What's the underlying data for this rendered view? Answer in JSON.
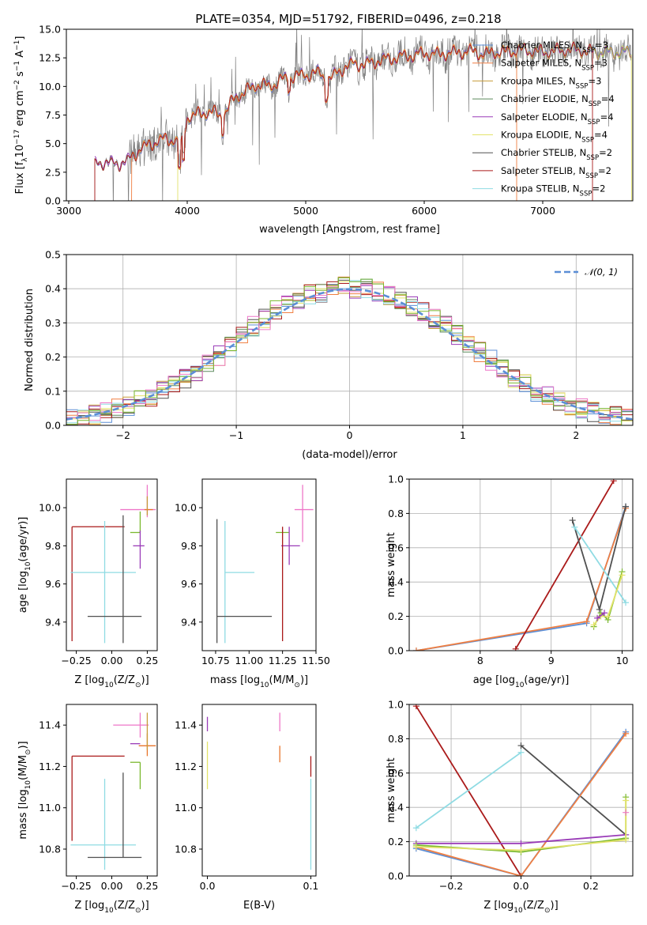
{
  "figure_title": "PLATE=0354, MJD=51792, FIBERID=0496, z=0.218",
  "colors": {
    "chabrier_miles": "#5b8ed6",
    "salpeter_miles": "#f07f42",
    "kroupa_miles": "#c79b3a",
    "chabrier_elodie": "#5c8a5c",
    "salpeter_elodie": "#9a3cb8",
    "kroupa_elodie": "#e3e36b",
    "chabrier_stelib": "#505050",
    "salpeter_stelib": "#aa1a1a",
    "kroupa_stelib": "#8fdbe3",
    "data": "#808080",
    "pink": "#ee77c8",
    "green": "#7ab82e",
    "orange": "#e8742a"
  },
  "chart_data": [
    {
      "id": "spectrum",
      "type": "line",
      "title": "PLATE=0354, MJD=51792, FIBERID=0496, z=0.218",
      "xlabel": "wavelength [Angstrom, rest frame]",
      "ylabel": "Flux [f",
      "ylabel_sub": "λ",
      "ylabel_rest": "10",
      "ylabel_exp": "−17",
      "ylabel_units": " erg cm",
      "ylabel_units_exp": "−2",
      "ylabel_units2": " s",
      "ylabel_units2_exp": "−1",
      "ylabel_units3": " A",
      "ylabel_units3_exp": "−1",
      "ylabel_end": "]",
      "xlim": [
        2980,
        7760
      ],
      "ylim": [
        0,
        15
      ],
      "xticks": [
        3000,
        4000,
        5000,
        6000,
        7000
      ],
      "yticks": [
        0.0,
        2.5,
        5.0,
        7.5,
        10.0,
        12.5,
        15.0
      ],
      "xtick_labels": [
        "3000",
        "4000",
        "5000",
        "6000",
        "7000"
      ],
      "ytick_labels": [
        "0.0",
        "2.5",
        "5.0",
        "7.5",
        "10.0",
        "12.5",
        "15.0"
      ],
      "legend_position": "right",
      "legend": [
        {
          "name": "Chabrier MILES, N",
          "sub": "SSP",
          "tail": "=3",
          "color": "#5b8ed6"
        },
        {
          "name": "Salpeter MILES, N",
          "sub": "SSP",
          "tail": "=3",
          "color": "#f07f42"
        },
        {
          "name": "Kroupa MILES, N",
          "sub": "SSP",
          "tail": "=3",
          "color": "#c79b3a"
        },
        {
          "name": "Chabrier ELODIE, N",
          "sub": "SSP",
          "tail": "=4",
          "color": "#5c8a5c"
        },
        {
          "name": "Salpeter ELODIE, N",
          "sub": "SSP",
          "tail": "=4",
          "color": "#9a3cb8"
        },
        {
          "name": "Kroupa ELODIE, N",
          "sub": "SSP",
          "tail": "=4",
          "color": "#e3e36b"
        },
        {
          "name": "Chabrier STELIB, N",
          "sub": "SSP",
          "tail": "=2",
          "color": "#505050"
        },
        {
          "name": "Salpeter STELIB, N",
          "sub": "SSP",
          "tail": "=2",
          "color": "#aa1a1a"
        },
        {
          "name": "Kroupa STELIB, N",
          "sub": "SSP",
          "tail": "=2",
          "color": "#8fdbe3"
        }
      ],
      "model_envelope": {
        "x": [
          3220,
          3300,
          3400,
          3500,
          3600,
          3700,
          3800,
          3900,
          3950,
          4000,
          4100,
          4200,
          4300,
          4400,
          4500,
          4600,
          4700,
          4800,
          4900,
          5000,
          5100,
          5200,
          5300,
          5400,
          5500,
          5600,
          5700,
          5800,
          5900,
          6000,
          6100,
          6200,
          6300,
          6400,
          6500,
          6600,
          6700,
          6800,
          6900,
          7000,
          7100,
          7200,
          7300,
          7420
        ],
        "y": [
          3.2,
          3.4,
          3.2,
          3.5,
          4.5,
          5.0,
          5.4,
          5.3,
          4.8,
          7.3,
          7.6,
          7.8,
          7.4,
          9.0,
          9.6,
          10.2,
          10.0,
          10.6,
          10.9,
          11.0,
          11.2,
          10.6,
          11.5,
          12.0,
          11.9,
          12.2,
          12.4,
          12.6,
          12.7,
          12.9,
          12.8,
          12.9,
          13.0,
          13.1,
          12.8,
          13.0,
          13.0,
          13.2,
          13.1,
          13.0,
          13.1,
          13.2,
          13.2,
          13.0
        ]
      },
      "cutoffs": {
        "data_start": 3220,
        "salpeter_miles_start": 3530,
        "kroupa_miles_gap": [
          3570,
          3610
        ],
        "kroupa_elodie_start": 3920,
        "salpeter_miles_end": 6780,
        "salpeter_stelib_end": 7420
      }
    },
    {
      "id": "residuals",
      "type": "line",
      "xlabel": "(data-model)/error",
      "ylabel": "Normed distribution",
      "xlim": [
        -2.5,
        2.5
      ],
      "ylim": [
        0,
        0.5
      ],
      "xticks": [
        -2,
        -1,
        0,
        1,
        2
      ],
      "yticks": [
        0.0,
        0.1,
        0.2,
        0.3,
        0.4,
        0.5
      ],
      "xtick_labels": [
        "−2",
        "−1",
        "0",
        "1",
        "2"
      ],
      "ytick_labels": [
        "0.0",
        "0.1",
        "0.2",
        "0.3",
        "0.4",
        "0.5"
      ],
      "grid": true,
      "legend_position": "top-right",
      "legend": [
        {
          "name": "𝒩(0, 1)",
          "color": "#5b8ed6",
          "style": "dashed"
        }
      ],
      "bin_width": 0.1,
      "bin_start": -2.5,
      "base_hist": [
        0.018,
        0.022,
        0.03,
        0.038,
        0.048,
        0.058,
        0.072,
        0.085,
        0.1,
        0.118,
        0.135,
        0.155,
        0.18,
        0.205,
        0.23,
        0.26,
        0.29,
        0.31,
        0.335,
        0.35,
        0.37,
        0.385,
        0.39,
        0.4,
        0.41,
        0.4,
        0.398,
        0.39,
        0.38,
        0.365,
        0.35,
        0.33,
        0.31,
        0.29,
        0.265,
        0.24,
        0.215,
        0.19,
        0.165,
        0.14,
        0.12,
        0.1,
        0.085,
        0.07,
        0.058,
        0.048,
        0.04,
        0.032,
        0.025,
        0.02
      ]
    },
    {
      "id": "age_vs_Z",
      "type": "scatter",
      "xlabel": "Z [log",
      "xlabel_sub": "10",
      "xlabel_rest": "(Z/Z",
      "xlabel_sub2": "⊙",
      "xlabel_end": ")]",
      "ylabel": "age  [log",
      "ylabel_sub": "10",
      "ylabel_rest": "(age/yr)]",
      "xlim": [
        -0.32,
        0.32
      ],
      "ylim": [
        9.25,
        10.15
      ],
      "xticks": [
        -0.25,
        0.0,
        0.25
      ],
      "yticks": [
        9.4,
        9.6,
        9.8,
        10.0
      ],
      "xtick_labels": [
        "−0.25",
        "0.00",
        "0.25"
      ],
      "ytick_labels": [
        "9.4",
        "9.6",
        "9.8",
        "10.0"
      ],
      "points": [
        {
          "x": 0.25,
          "y": 9.99,
          "xerr": [
            0.19,
            0.06
          ],
          "yerr": [
            0.04,
            0.13
          ],
          "color": "#ee77c8"
        },
        {
          "x": 0.23,
          "y": 9.99,
          "xerr": [
            0.0,
            0.06
          ],
          "yerr": [
            0.0,
            0.0
          ],
          "color": "#e8742a"
        },
        {
          "x": 0.2,
          "y": 9.87,
          "xerr": [
            0.07,
            0.0
          ],
          "yerr": [
            0.0,
            0.11
          ],
          "color": "#7ab82e"
        },
        {
          "x": 0.2,
          "y": 9.8,
          "xerr": [
            0.05,
            0.03
          ],
          "yerr": [
            0.12,
            0.08
          ],
          "color": "#9a3cb8"
        },
        {
          "x": -0.28,
          "y": 9.9,
          "xerr": [
            0.0,
            0.37
          ],
          "yerr": [
            0.6,
            0.0
          ],
          "color": "#aa1a1a"
        },
        {
          "x": -0.05,
          "y": 9.66,
          "xerr": [
            0.24,
            0.22
          ],
          "yerr": [
            0.37,
            0.27
          ],
          "color": "#8fdbe3"
        },
        {
          "x": 0.08,
          "y": 9.43,
          "xerr": [
            0.25,
            0.13
          ],
          "yerr": [
            0.14,
            0.53
          ],
          "color": "#505050"
        },
        {
          "x": 0.25,
          "y": 9.99,
          "xerr": [
            0.0,
            0.0
          ],
          "yerr": [
            0.03,
            0.07
          ],
          "color": "#c79b3a"
        }
      ]
    },
    {
      "id": "age_vs_mass",
      "type": "scatter",
      "xlabel": "mass [log",
      "xlabel_sub": "10",
      "xlabel_rest": "(M/M",
      "xlabel_sub2": "⊙",
      "xlabel_end": ")]",
      "xlim": [
        10.65,
        11.5
      ],
      "ylim": [
        9.25,
        10.15
      ],
      "xticks": [
        10.75,
        11.0,
        11.25,
        11.5
      ],
      "yticks": [
        9.4,
        9.6,
        9.8,
        10.0
      ],
      "xtick_labels": [
        "10.75",
        "11.00",
        "11.25",
        "11.50"
      ],
      "ytick_labels": [
        "9.4",
        "9.6",
        "9.8",
        "10.0"
      ],
      "points": [
        {
          "x": 11.4,
          "y": 9.99,
          "xerr": [
            0.06,
            0.08
          ],
          "yerr": [
            0.17,
            0.13
          ],
          "color": "#ee77c8"
        },
        {
          "x": 11.3,
          "y": 9.87,
          "xerr": [
            0.1,
            0.0
          ],
          "yerr": [
            0.0,
            0.0
          ],
          "color": "#7ab82e"
        },
        {
          "x": 11.3,
          "y": 9.8,
          "xerr": [
            0.06,
            0.08
          ],
          "yerr": [
            0.1,
            0.1
          ],
          "color": "#9a3cb8"
        },
        {
          "x": 11.25,
          "y": 9.9,
          "xerr": [
            0.0,
            0.0
          ],
          "yerr": [
            0.6,
            0.0
          ],
          "color": "#aa1a1a"
        },
        {
          "x": 10.82,
          "y": 9.66,
          "xerr": [
            0.0,
            0.22
          ],
          "yerr": [
            0.37,
            0.27
          ],
          "color": "#8fdbe3"
        },
        {
          "x": 10.76,
          "y": 9.43,
          "xerr": [
            0.0,
            0.41
          ],
          "yerr": [
            0.14,
            0.51
          ],
          "color": "#505050"
        }
      ]
    },
    {
      "id": "mass_weight_vs_age",
      "type": "line",
      "xlabel": "age  [log",
      "xlabel_sub": "10",
      "xlabel_rest": "(age/yr)]",
      "ylabel": "mass weight",
      "xlim": [
        7.0,
        10.15
      ],
      "ylim": [
        0,
        1
      ],
      "xticks": [
        8,
        9,
        10
      ],
      "yticks": [
        0.0,
        0.2,
        0.4,
        0.6,
        0.8,
        1.0
      ],
      "xtick_labels": [
        "8",
        "9",
        "10"
      ],
      "ytick_labels": [
        "0.0",
        "0.2",
        "0.4",
        "0.6",
        "0.8",
        "1.0"
      ],
      "grid": true,
      "series": [
        {
          "color": "#5b8ed6",
          "x": [
            7.1,
            9.5,
            10.05
          ],
          "y": [
            0.0,
            0.16,
            0.84
          ]
        },
        {
          "color": "#f07f42",
          "x": [
            7.1,
            9.5,
            10.05
          ],
          "y": [
            0.0,
            0.17,
            0.83
          ]
        },
        {
          "color": "#aa1a1a",
          "x": [
            8.5,
            9.88
          ],
          "y": [
            0.01,
            0.99
          ]
        },
        {
          "color": "#505050",
          "x": [
            9.3,
            9.68,
            10.05
          ],
          "y": [
            0.76,
            0.24,
            0.84
          ]
        },
        {
          "color": "#8fdbe3",
          "x": [
            9.33,
            10.05
          ],
          "y": [
            0.72,
            0.28
          ]
        },
        {
          "color": "#7ab82e",
          "x": [
            9.6,
            9.7,
            9.8,
            10.0
          ],
          "y": [
            0.14,
            0.22,
            0.18,
            0.46
          ]
        },
        {
          "color": "#e3e36b",
          "x": [
            9.6,
            9.7,
            9.8,
            10.0
          ],
          "y": [
            0.15,
            0.2,
            0.2,
            0.44
          ]
        },
        {
          "color": "#9a3cb8",
          "x": [
            9.65,
            9.75
          ],
          "y": [
            0.19,
            0.22
          ]
        }
      ]
    },
    {
      "id": "mass_vs_Z",
      "type": "scatter",
      "ylabel": "mass [log",
      "ylabel_sub": "10",
      "ylabel_rest": "(M/M",
      "ylabel_sub2": "⊙",
      "ylabel_end": ")]",
      "xlabel": "Z [log",
      "xlabel_sub": "10",
      "xlabel_rest": "(Z/Z",
      "xlabel_sub2": "⊙",
      "xlabel_end": ")]",
      "xlim": [
        -0.32,
        0.32
      ],
      "ylim": [
        10.67,
        11.5
      ],
      "xticks": [
        -0.25,
        0.0,
        0.25
      ],
      "yticks": [
        10.8,
        11.0,
        11.2,
        11.4
      ],
      "xtick_labels": [
        "−0.25",
        "0.00",
        "0.25"
      ],
      "ytick_labels": [
        "10.8",
        "11.0",
        "11.2",
        "11.4"
      ],
      "points": [
        {
          "x": 0.2,
          "y": 11.4,
          "xerr": [
            0.19,
            0.06
          ],
          "yerr": [
            0.06,
            0.06
          ],
          "color": "#ee77c8"
        },
        {
          "x": 0.25,
          "y": 11.3,
          "xerr": [
            0.06,
            0.06
          ],
          "yerr": [
            0.05,
            0.06
          ],
          "color": "#e8742a"
        },
        {
          "x": 0.2,
          "y": 11.31,
          "xerr": [
            0.07,
            0.0
          ],
          "yerr": [
            0.0,
            0.0
          ],
          "color": "#9a3cb8"
        },
        {
          "x": 0.2,
          "y": 11.22,
          "xerr": [
            0.07,
            0.0
          ],
          "yerr": [
            0.13,
            0.0
          ],
          "color": "#7ab82e"
        },
        {
          "x": -0.28,
          "y": 11.25,
          "xerr": [
            0.0,
            0.37
          ],
          "yerr": [
            0.41,
            0.0
          ],
          "color": "#aa1a1a"
        },
        {
          "x": -0.05,
          "y": 10.82,
          "xerr": [
            0.24,
            0.22
          ],
          "yerr": [
            0.12,
            0.32
          ],
          "color": "#8fdbe3"
        },
        {
          "x": 0.08,
          "y": 10.76,
          "xerr": [
            0.25,
            0.13
          ],
          "yerr": [
            0.0,
            0.41
          ],
          "color": "#505050"
        },
        {
          "x": 0.25,
          "y": 11.31,
          "xerr": [
            0.0,
            0.0
          ],
          "yerr": [
            0.03,
            0.15
          ],
          "color": "#c79b3a"
        }
      ]
    },
    {
      "id": "mass_vs_ebv",
      "type": "scatter",
      "xlabel": "E(B-V)",
      "xlim": [
        -0.005,
        0.105
      ],
      "ylim": [
        10.67,
        11.5
      ],
      "xticks": [
        0.0,
        0.1
      ],
      "yticks": [
        10.8,
        11.0,
        11.2,
        11.4
      ],
      "xtick_labels": [
        "0.0",
        "0.1"
      ],
      "ytick_labels": [
        "10.8",
        "11.0",
        "11.2",
        "11.4"
      ],
      "points": [
        {
          "x": 0.0,
          "y": 11.4,
          "yerr": [
            0.03,
            0.04
          ],
          "color": "#9a3cb8"
        },
        {
          "x": 0.0,
          "y": 11.22,
          "yerr": [
            0.13,
            0.1
          ],
          "color": "#e3e36b"
        },
        {
          "x": 0.07,
          "y": 11.4,
          "yerr": [
            0.03,
            0.06
          ],
          "color": "#ee77c8"
        },
        {
          "x": 0.07,
          "y": 11.3,
          "yerr": [
            0.08,
            0.0
          ],
          "color": "#e8742a"
        },
        {
          "x": 0.1,
          "y": 11.2,
          "yerr": [
            0.05,
            0.05
          ],
          "color": "#aa1a1a"
        },
        {
          "x": 0.1,
          "y": 10.82,
          "yerr": [
            0.12,
            0.32
          ],
          "color": "#8fdbe3"
        }
      ]
    },
    {
      "id": "mass_weight_vs_Z",
      "type": "line",
      "xlabel": "Z [log",
      "xlabel_sub": "10",
      "xlabel_rest": "(Z/Z",
      "xlabel_sub2": "⊙",
      "xlabel_end": ")]",
      "ylabel": "mass weight",
      "xlim": [
        -0.32,
        0.32
      ],
      "ylim": [
        0,
        1
      ],
      "xticks": [
        -0.2,
        0.0,
        0.2
      ],
      "yticks": [
        0.0,
        0.2,
        0.4,
        0.6,
        0.8,
        1.0
      ],
      "xtick_labels": [
        "−0.2",
        "0.0",
        "0.2"
      ],
      "ytick_labels": [
        "0.0",
        "0.2",
        "0.4",
        "0.6",
        "0.8",
        "1.0"
      ],
      "grid": true,
      "series": [
        {
          "color": "#aa1a1a",
          "x": [
            -0.3,
            0.0
          ],
          "y": [
            0.99,
            0.0
          ]
        },
        {
          "color": "#8fdbe3",
          "x": [
            -0.3,
            0.0
          ],
          "y": [
            0.28,
            0.72
          ]
        },
        {
          "color": "#505050",
          "x": [
            0.0,
            0.3
          ],
          "y": [
            0.76,
            0.24
          ]
        },
        {
          "color": "#5b8ed6",
          "x": [
            -0.3,
            0.0,
            0.3
          ],
          "y": [
            0.16,
            0.0,
            0.84
          ]
        },
        {
          "color": "#f07f42",
          "x": [
            -0.3,
            0.0,
            0.3
          ],
          "y": [
            0.17,
            0.0,
            0.83
          ]
        },
        {
          "color": "#9a3cb8",
          "x": [
            -0.3,
            0.0,
            0.3
          ],
          "y": [
            0.19,
            0.19,
            0.24
          ]
        },
        {
          "color": "#7ab82e",
          "x": [
            -0.3,
            0.0,
            0.3,
            0.3
          ],
          "y": [
            0.18,
            0.14,
            0.22,
            0.46
          ]
        },
        {
          "color": "#e3e36b",
          "x": [
            -0.3,
            0.0,
            0.3,
            0.3
          ],
          "y": [
            0.17,
            0.15,
            0.21,
            0.44
          ]
        },
        {
          "color": "#ee77c8",
          "x": [
            0.3
          ],
          "y": [
            0.37
          ]
        }
      ]
    }
  ]
}
